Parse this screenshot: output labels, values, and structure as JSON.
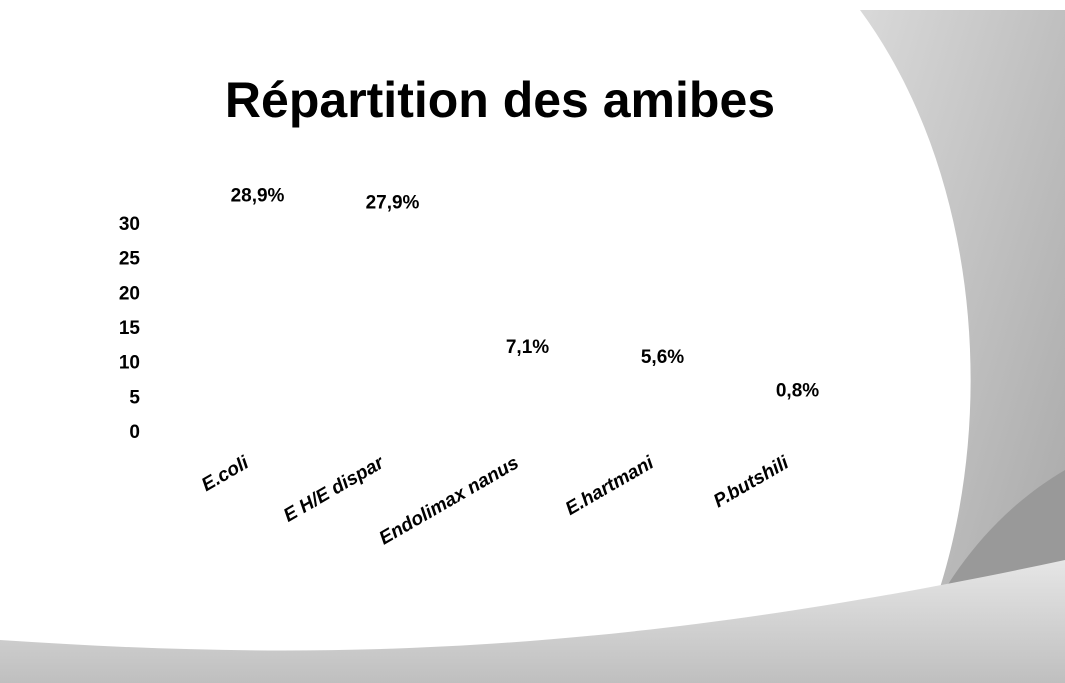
{
  "chart_data": {
    "type": "bar",
    "title": "Répartition des amibes",
    "categories": [
      "E.coli",
      "E H/E dispar",
      "Endolimax nanus",
      "E.hartmani",
      "P.butshili"
    ],
    "values": [
      28.9,
      27.9,
      7.1,
      5.6,
      0.8
    ],
    "value_labels": [
      "28,9%",
      "27,9%",
      "7,1%",
      "5,6%",
      "0,8%"
    ],
    "color": "#ffffff",
    "ylim": [
      0,
      30
    ],
    "yticks": [
      0,
      5,
      10,
      15,
      20,
      25,
      30
    ],
    "grid": false
  }
}
